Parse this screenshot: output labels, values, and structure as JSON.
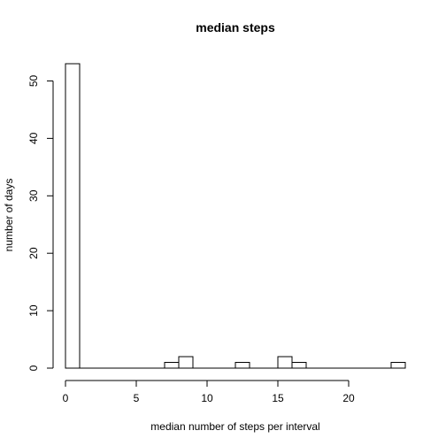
{
  "chart_data": {
    "type": "bar",
    "title": "median steps",
    "xlabel": "median number of steps per interval",
    "ylabel": "number of days",
    "bin_width": 1,
    "bins": [
      {
        "x0": 0,
        "x1": 1,
        "count": 53
      },
      {
        "x0": 7,
        "x1": 8,
        "count": 1
      },
      {
        "x0": 8,
        "x1": 9,
        "count": 2
      },
      {
        "x0": 12,
        "x1": 13,
        "count": 1
      },
      {
        "x0": 15,
        "x1": 16,
        "count": 2
      },
      {
        "x0": 16,
        "x1": 17,
        "count": 1
      },
      {
        "x0": 23,
        "x1": 24,
        "count": 1
      }
    ],
    "xlim": [
      0,
      24
    ],
    "ylim": [
      0,
      53
    ],
    "xticks": [
      0,
      5,
      10,
      15,
      20
    ],
    "yticks": [
      0,
      10,
      20,
      30,
      40,
      50
    ],
    "grid": false,
    "legend": "none",
    "bar_fill": "#ffffff",
    "bar_stroke": "#000000"
  }
}
